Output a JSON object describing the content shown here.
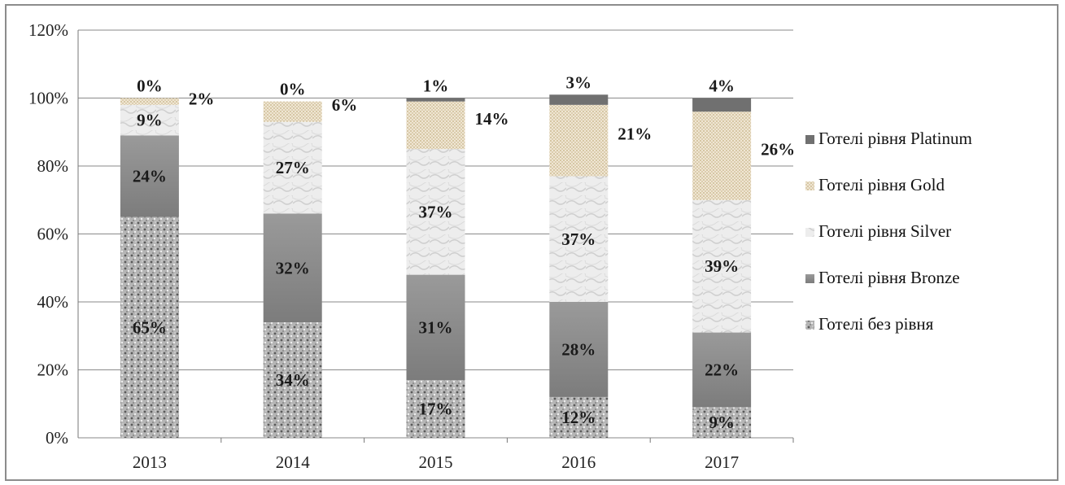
{
  "chart_data": {
    "type": "bar",
    "stacked": true,
    "categories": [
      "2013",
      "2014",
      "2015",
      "2016",
      "2017"
    ],
    "series": [
      {
        "name": "Готелі без рівня",
        "values": [
          65,
          34,
          17,
          12,
          9
        ],
        "labels": [
          "65%",
          "34%",
          "17%",
          "12%",
          "9%"
        ],
        "color": "#9e9e9e"
      },
      {
        "name": "Готелі рівня Bronze",
        "values": [
          24,
          32,
          31,
          28,
          22
        ],
        "labels": [
          "24%",
          "32%",
          "31%",
          "28%",
          "22%"
        ],
        "color": "#8a8a8a"
      },
      {
        "name": "Готелі рівня Silver",
        "values": [
          9,
          27,
          37,
          37,
          39
        ],
        "labels": [
          "9%",
          "27%",
          "37%",
          "37%",
          "39%"
        ],
        "color": "#e6e6e6"
      },
      {
        "name": "Готелі рівня Gold",
        "values": [
          2,
          6,
          14,
          21,
          26
        ],
        "labels": [
          "2%",
          "6%",
          "14%",
          "21%",
          "26%"
        ],
        "color": "#e8dcc4"
      },
      {
        "name": "Готелі рівня Platinum",
        "values": [
          0,
          0,
          1,
          3,
          4
        ],
        "labels": [
          "0%",
          "0%",
          "1%",
          "3%",
          "4%"
        ],
        "color": "#6e6e6e"
      }
    ],
    "yticks": [
      "0%",
      "20%",
      "40%",
      "60%",
      "80%",
      "100%",
      "120%"
    ],
    "ylim": [
      0,
      120
    ],
    "grid": true,
    "legend_position": "right",
    "legend_order": [
      "Готелі рівня Platinum",
      "Готелі рівня Gold",
      "Готелі рівня Silver",
      "Готелі рівня Bronze",
      "Готелі без рівня"
    ]
  }
}
